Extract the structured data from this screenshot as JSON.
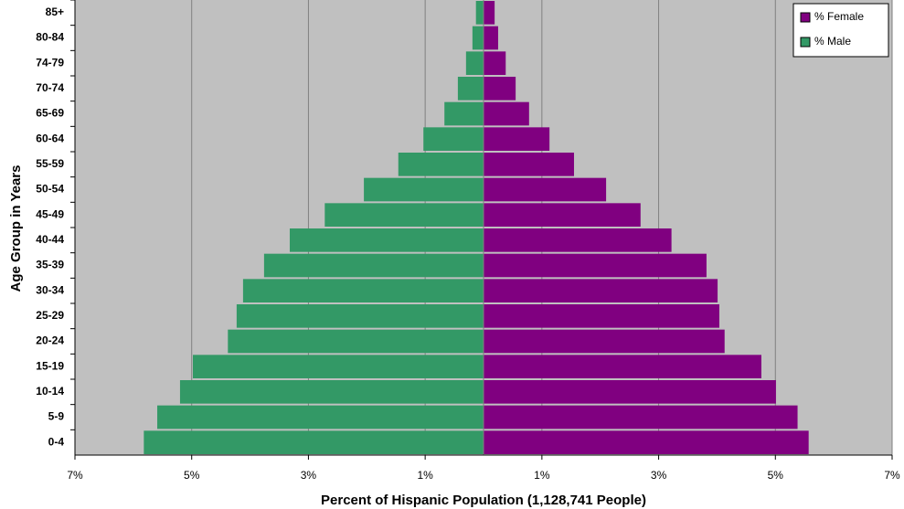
{
  "chart_data": {
    "type": "pyramid",
    "xlabel": "Percent of Hispanic Population (1,128,741 People)",
    "ylabel": "Age Group in Years",
    "categories": [
      "0-4",
      "5-9",
      "10-14",
      "15-19",
      "20-24",
      "25-29",
      "30-34",
      "35-39",
      "40-44",
      "45-49",
      "50-54",
      "55-59",
      "60-64",
      "65-69",
      "70-74",
      "74-79",
      "80-84",
      "85+"
    ],
    "series": [
      {
        "name": "% Female",
        "color": "#800080",
        "values": [
          5.57,
          5.38,
          5.01,
          4.76,
          4.13,
          4.04,
          4.01,
          3.82,
          3.22,
          2.69,
          2.1,
          1.55,
          1.13,
          0.78,
          0.55,
          0.38,
          0.25,
          0.19
        ]
      },
      {
        "name": "% Male",
        "color": "#339966",
        "values": [
          -5.82,
          -5.59,
          -5.2,
          -4.98,
          -4.38,
          -4.23,
          -4.12,
          -3.76,
          -3.32,
          -2.72,
          -2.05,
          -1.46,
          -1.03,
          -0.67,
          -0.44,
          -0.3,
          -0.19,
          -0.13
        ]
      }
    ],
    "xlim": [
      -7,
      7
    ],
    "xticks": [
      {
        "value": -7,
        "label": "7%"
      },
      {
        "value": -5,
        "label": "5%"
      },
      {
        "value": -3,
        "label": "3%"
      },
      {
        "value": -1,
        "label": "1%"
      },
      {
        "value": 1,
        "label": "1%"
      },
      {
        "value": 3,
        "label": "3%"
      },
      {
        "value": 5,
        "label": "5%"
      },
      {
        "value": 7,
        "label": "7%"
      }
    ],
    "grid": true,
    "legend": "upper right"
  }
}
